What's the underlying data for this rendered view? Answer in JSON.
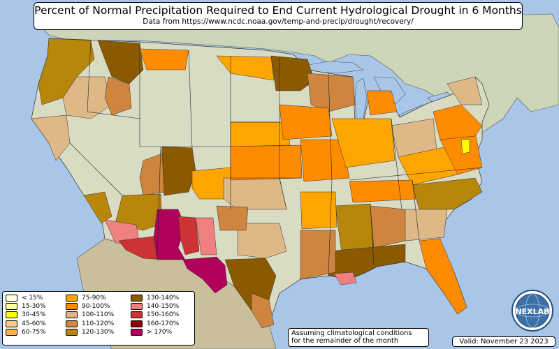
{
  "title": "Percent of Normal Precipitation Required to End Current Hydrological Drought in 6 Months",
  "subtitle": "Data from https://www.ncdc.noaa.gov/temp-and-precip/drought/recovery/",
  "note": {
    "line1": "Assuming climatological conditions",
    "line2": "for the remainder of the month"
  },
  "valid": "Valid: November 23 2023",
  "logo": {
    "text": "NEXLAB",
    "icon": "globe-logo-icon"
  },
  "colors": {
    "ocean": "#a9c6e8",
    "land": "#d9dcc3",
    "canada": "#cdd5b8",
    "mexico": "#c9bf9a"
  },
  "legend": {
    "col1": [
      {
        "label": "< 15%",
        "color": "#ffffe0"
      },
      {
        "label": "15-30%",
        "color": "#ffff99"
      },
      {
        "label": "30-45%",
        "color": "#ffff00"
      },
      {
        "label": "45-60%",
        "color": "#f7c98b"
      },
      {
        "label": "60-75%",
        "color": "#ffb347"
      }
    ],
    "col2": [
      {
        "label": "75-90%",
        "color": "#ffa500"
      },
      {
        "label": "90-100%",
        "color": "#ff8c00"
      },
      {
        "label": "100-110%",
        "color": "#deb887"
      },
      {
        "label": "110-120%",
        "color": "#cd853f"
      },
      {
        "label": "120-130%",
        "color": "#b8860b"
      }
    ],
    "col3": [
      {
        "label": "130-140%",
        "color": "#8b5a00"
      },
      {
        "label": "140-150%",
        "color": "#f08080"
      },
      {
        "label": "150-160%",
        "color": "#cd3333"
      },
      {
        "label": "160-170%",
        "color": "#8b0000"
      },
      {
        "label": "> 170%",
        "color": "#b0005a"
      }
    ]
  }
}
